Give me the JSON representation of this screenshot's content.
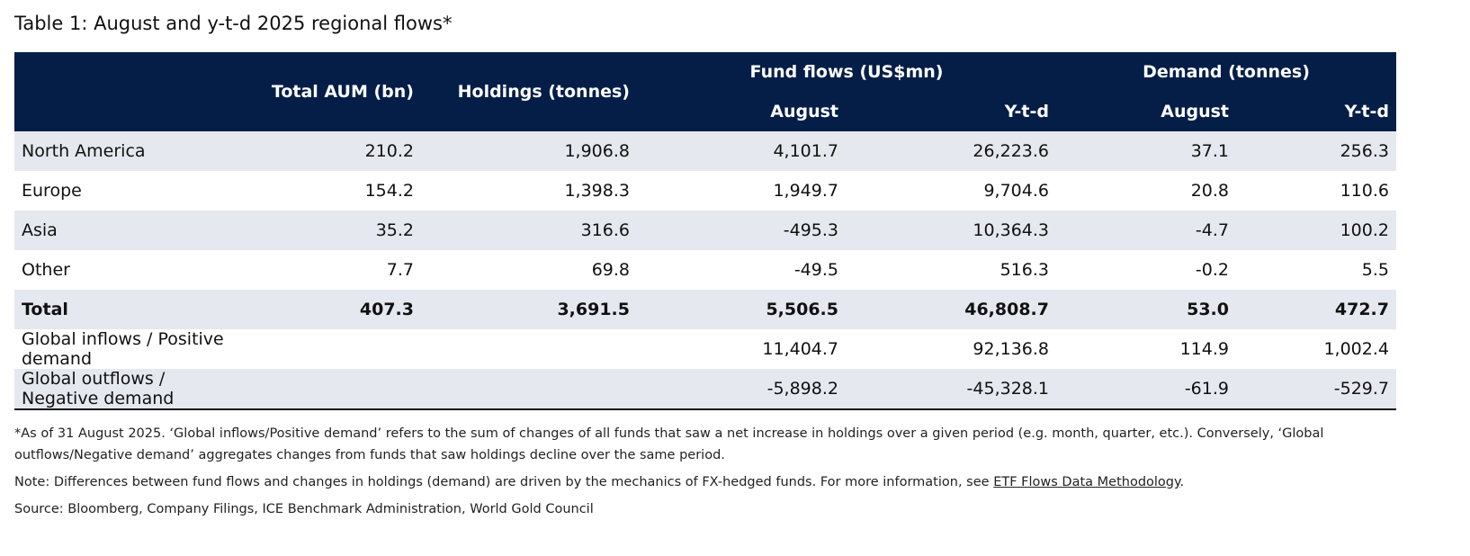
{
  "title": "Table 1: August and y-t-d 2025 regional flows*",
  "headers": {
    "total_aum": "Total AUM (bn)",
    "holdings": "Holdings (tonnes)",
    "fund_flows": "Fund flows (US$mn)",
    "demand": "Demand (tonnes)",
    "ff_august": "August",
    "ff_ytd": "Y-t-d",
    "d_august": "August",
    "d_ytd": "Y-t-d"
  },
  "rows": [
    {
      "region": "North America",
      "aum": "210.2",
      "holdings": "1,906.8",
      "ff_aug": "4,101.7",
      "ff_ytd": "26,223.6",
      "d_aug": "37.1",
      "d_ytd": "256.3"
    },
    {
      "region": "Europe",
      "aum": "154.2",
      "holdings": "1,398.3",
      "ff_aug": "1,949.7",
      "ff_ytd": "9,704.6",
      "d_aug": "20.8",
      "d_ytd": "110.6"
    },
    {
      "region": "Asia",
      "aum": "35.2",
      "holdings": "316.6",
      "ff_aug": "-495.3",
      "ff_ytd": "10,364.3",
      "d_aug": "-4.7",
      "d_ytd": "100.2"
    },
    {
      "region": "Other",
      "aum": "7.7",
      "holdings": "69.8",
      "ff_aug": "-49.5",
      "ff_ytd": "516.3",
      "d_aug": "-0.2",
      "d_ytd": "5.5"
    },
    {
      "region": "Total",
      "aum": "407.3",
      "holdings": "3,691.5",
      "ff_aug": "5,506.5",
      "ff_ytd": "46,808.7",
      "d_aug": "53.0",
      "d_ytd": "472.7"
    },
    {
      "region": "Global inflows / Positive demand",
      "aum": "",
      "holdings": "",
      "ff_aug": "11,404.7",
      "ff_ytd": "92,136.8",
      "d_aug": "114.9",
      "d_ytd": "1,002.4"
    },
    {
      "region": "Global outflows / Negative demand",
      "aum": "",
      "holdings": "",
      "ff_aug": "-5,898.2",
      "ff_ytd": "-45,328.1",
      "d_aug": "-61.9",
      "d_ytd": "-529.7"
    }
  ],
  "footnote": "*As of 31 August 2025. ‘Global inflows/Positive demand’ refers to the sum of changes of all funds that saw a net increase in holdings over a given period (e.g. month, quarter, etc.). Conversely, ‘Global outflows/Negative demand’ aggregates changes from funds that saw holdings decline over the same period.",
  "note_prefix": "Note: Differences between fund flows and changes in holdings (demand) are driven by the mechanics of FX-hedged funds. For more information, see ",
  "note_link": "ETF Flows Data Methodology",
  "note_suffix": ".",
  "source": "Source: Bloomberg, Company Filings, ICE Benchmark Administration, World Gold Council",
  "colors": {
    "header_bg": "#041e48",
    "stripe": "#e5e8ee"
  }
}
